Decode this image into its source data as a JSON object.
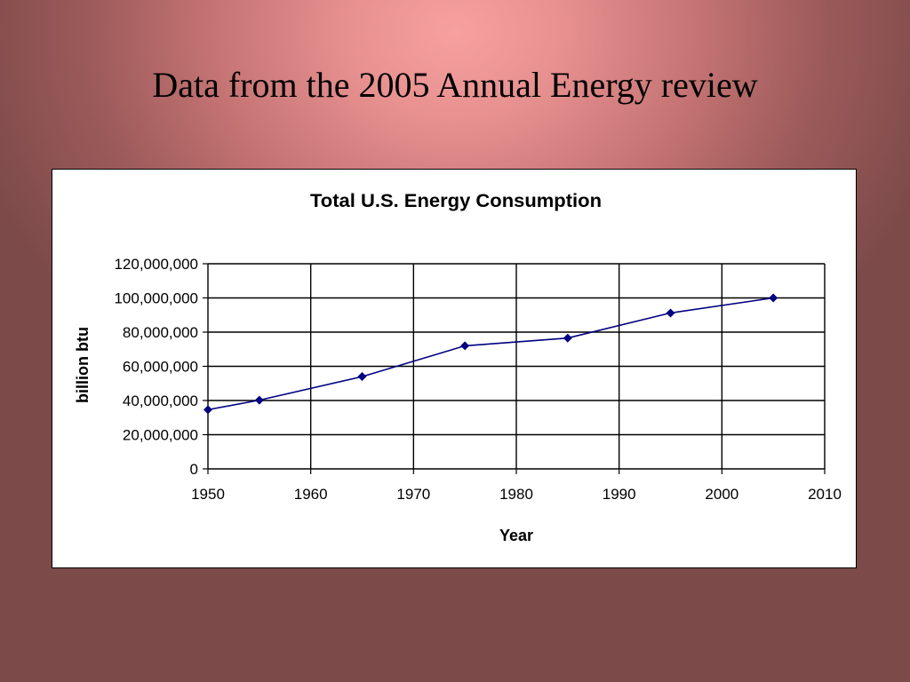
{
  "slide": {
    "title": "Data from the 2005 Annual Energy review"
  },
  "chart_data": {
    "type": "line",
    "title": "Total U.S. Energy Consumption",
    "xlabel": "Year",
    "ylabel": "billion btu",
    "xlim": [
      1950,
      2010
    ],
    "ylim": [
      0,
      120000000
    ],
    "x_ticks": [
      1950,
      1960,
      1970,
      1980,
      1990,
      2000,
      2010
    ],
    "x_tick_labels": [
      "1950",
      "1960",
      "1970",
      "1980",
      "1990",
      "2000",
      "2010"
    ],
    "y_ticks": [
      0,
      20000000,
      40000000,
      60000000,
      80000000,
      100000000,
      120000000
    ],
    "y_tick_labels": [
      "0",
      "20,000,000",
      "40,000,000",
      "60,000,000",
      "80,000,000",
      "100,000,000",
      "120,000,000"
    ],
    "grid": true,
    "legend": "none",
    "series": [
      {
        "color": "#000080",
        "marker": "diamond",
        "points": [
          {
            "x": 1950,
            "y": 34600000
          },
          {
            "x": 1955,
            "y": 40200000
          },
          {
            "x": 1965,
            "y": 54000000
          },
          {
            "x": 1975,
            "y": 72000000
          },
          {
            "x": 1985,
            "y": 76500000
          },
          {
            "x": 1995,
            "y": 91200000
          },
          {
            "x": 2005,
            "y": 100000000
          }
        ]
      }
    ]
  }
}
